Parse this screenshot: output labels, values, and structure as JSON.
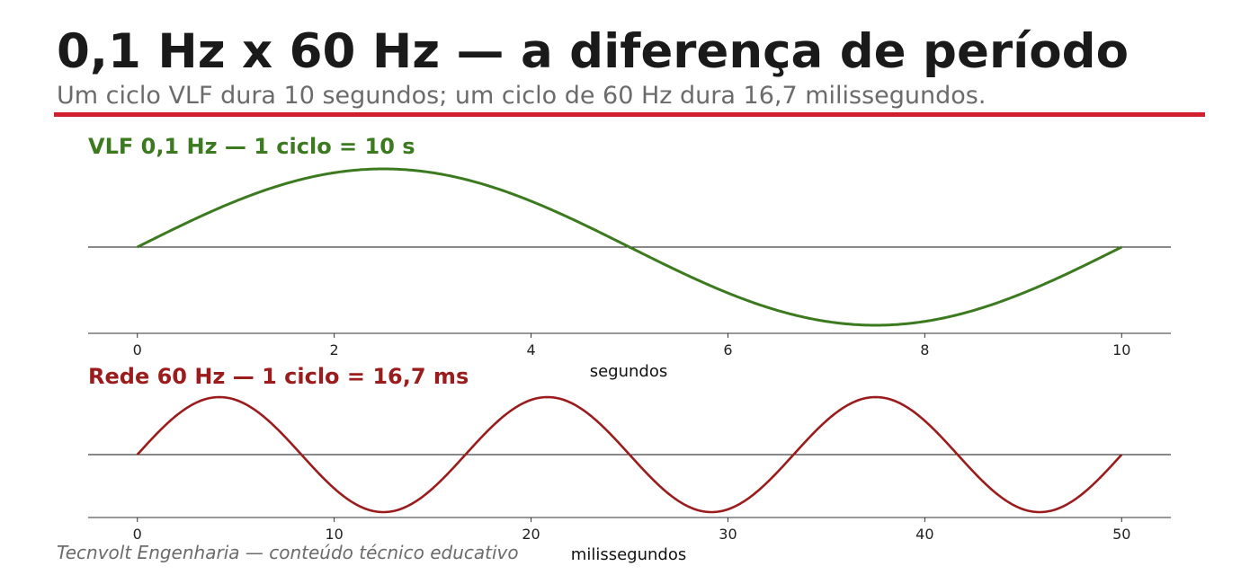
{
  "header": {
    "title": "0,1 Hz x 60 Hz — a diferença de período",
    "subtitle": "Um ciclo VLF dura 10 segundos; um ciclo de 60 Hz dura 16,7 milissegundos.",
    "accent_color": "#d0202e"
  },
  "footer": {
    "credit": "Tecnvolt Engenharia — conteúdo técnico educativo"
  },
  "chart_data": [
    {
      "type": "line",
      "title": "VLF 0,1 Hz — 1 ciclo = 10 s",
      "title_color": "#3b7a1e",
      "xlabel": "segundos",
      "ylabel": "",
      "xlim": [
        -0.5,
        10.5
      ],
      "ylim": [
        -1.1,
        1.1
      ],
      "xticks": [
        0,
        2,
        4,
        6,
        8,
        10
      ],
      "grid": false,
      "series": [
        {
          "frequency_hz": 0.1,
          "x_start": 0,
          "x_end": 10,
          "amplitude": 1,
          "color": "#3b7a1e"
        }
      ]
    },
    {
      "type": "line",
      "title": "Rede 60 Hz — 1 ciclo = 16,7 ms",
      "title_color": "#9b1c1c",
      "xlabel": "milissegundos",
      "ylabel": "",
      "xlim": [
        -2.5,
        52.5
      ],
      "ylim": [
        -1.05,
        1.05
      ],
      "xticks": [
        0,
        10,
        20,
        30,
        40,
        50
      ],
      "grid": false,
      "series": [
        {
          "frequency_hz": 60,
          "x_start": 0,
          "x_end": 50,
          "amplitude": 1,
          "color": "#9b1c1c"
        }
      ]
    }
  ]
}
